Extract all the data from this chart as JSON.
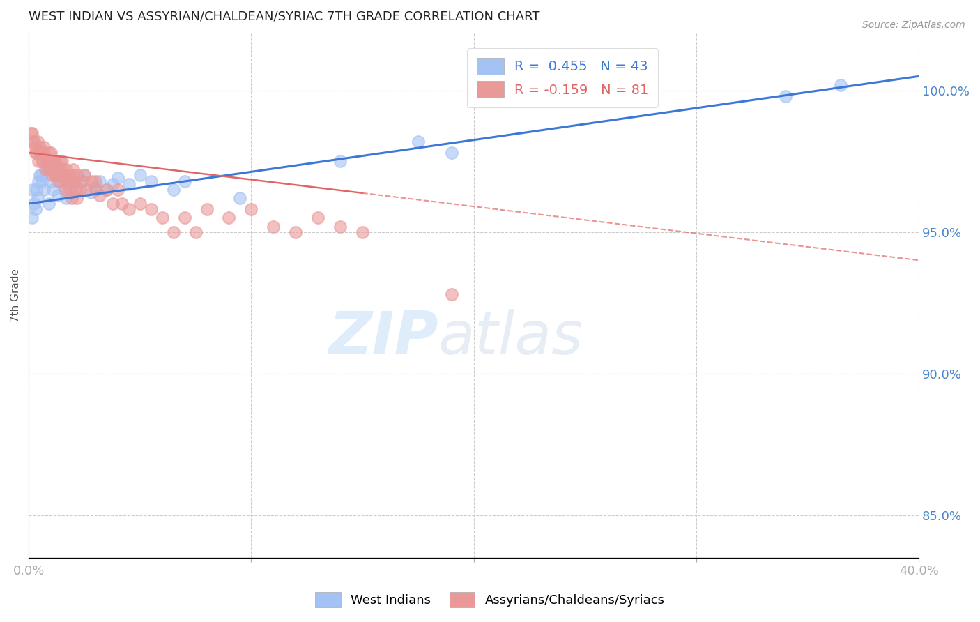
{
  "title": "WEST INDIAN VS ASSYRIAN/CHALDEAN/SYRIAC 7TH GRADE CORRELATION CHART",
  "source": "Source: ZipAtlas.com",
  "ylabel": "7th Grade",
  "ylabel_right_ticks": [
    85.0,
    90.0,
    95.0,
    100.0
  ],
  "xlim": [
    0.0,
    40.0
  ],
  "ylim": [
    83.5,
    102.0
  ],
  "blue_R": 0.455,
  "blue_N": 43,
  "pink_R": -0.159,
  "pink_N": 81,
  "legend_label_blue": "West Indians",
  "legend_label_pink": "Assyrians/Chaldeans/Syriacs",
  "watermark_zip": "ZIP",
  "watermark_atlas": "atlas",
  "blue_color": "#a4c2f4",
  "pink_color": "#ea9999",
  "blue_line_color": "#3c78d8",
  "pink_line_color": "#e06666",
  "axis_label_color": "#4a86c8",
  "title_color": "#222222",
  "grid_color": "#cccccc",
  "pink_solid_max_x": 15.0,
  "blue_scatter_x": [
    0.2,
    0.3,
    0.4,
    0.5,
    0.6,
    0.7,
    0.8,
    0.9,
    1.0,
    1.1,
    1.2,
    1.3,
    1.4,
    1.5,
    1.6,
    1.7,
    1.8,
    2.0,
    2.2,
    2.4,
    2.5,
    2.8,
    3.0,
    3.2,
    3.5,
    3.8,
    4.0,
    4.5,
    5.0,
    5.5,
    6.5,
    7.0,
    9.5,
    14.0,
    17.5,
    19.0,
    34.0,
    36.5,
    0.15,
    0.25,
    0.35,
    0.45,
    0.55
  ],
  "blue_scatter_y": [
    96.5,
    95.8,
    96.2,
    97.0,
    96.8,
    96.5,
    97.2,
    96.0,
    96.8,
    96.5,
    97.0,
    96.3,
    96.8,
    97.1,
    96.5,
    96.2,
    96.6,
    96.8,
    96.5,
    96.8,
    97.0,
    96.4,
    96.6,
    96.8,
    96.5,
    96.7,
    96.9,
    96.7,
    97.0,
    96.8,
    96.5,
    96.8,
    96.2,
    97.5,
    98.2,
    97.8,
    99.8,
    100.2,
    95.5,
    96.0,
    96.5,
    96.8,
    97.0
  ],
  "pink_scatter_x": [
    0.1,
    0.2,
    0.3,
    0.3,
    0.4,
    0.5,
    0.5,
    0.6,
    0.7,
    0.7,
    0.8,
    0.9,
    0.9,
    1.0,
    1.0,
    1.1,
    1.1,
    1.2,
    1.2,
    1.3,
    1.4,
    1.4,
    1.5,
    1.5,
    1.6,
    1.7,
    1.8,
    1.9,
    2.0,
    2.0,
    2.1,
    2.2,
    2.3,
    2.4,
    2.5,
    2.6,
    2.8,
    3.0,
    3.0,
    3.2,
    3.5,
    3.8,
    4.0,
    4.2,
    4.5,
    5.0,
    5.5,
    6.0,
    6.5,
    7.0,
    7.5,
    8.0,
    9.0,
    10.0,
    11.0,
    12.0,
    13.0,
    14.0,
    15.0,
    0.15,
    0.25,
    0.35,
    0.45,
    0.55,
    0.65,
    0.75,
    0.85,
    0.95,
    1.05,
    1.15,
    1.25,
    1.35,
    1.45,
    1.55,
    1.65,
    1.75,
    1.85,
    1.95,
    2.05,
    2.15,
    19.0
  ],
  "pink_scatter_y": [
    98.5,
    98.2,
    98.0,
    97.8,
    98.2,
    97.8,
    98.0,
    97.5,
    97.8,
    98.0,
    97.5,
    97.8,
    97.2,
    97.5,
    97.8,
    97.5,
    97.2,
    97.5,
    97.0,
    97.3,
    97.5,
    97.0,
    97.5,
    97.2,
    97.0,
    97.2,
    97.0,
    96.8,
    97.0,
    97.2,
    96.8,
    97.0,
    96.5,
    96.8,
    97.0,
    96.5,
    96.8,
    96.5,
    96.8,
    96.3,
    96.5,
    96.0,
    96.5,
    96.0,
    95.8,
    96.0,
    95.8,
    95.5,
    95.0,
    95.5,
    95.0,
    95.8,
    95.5,
    95.8,
    95.2,
    95.0,
    95.5,
    95.2,
    95.0,
    98.5,
    98.2,
    97.8,
    97.5,
    97.8,
    97.5,
    97.2,
    97.5,
    97.2,
    97.0,
    97.3,
    97.0,
    96.8,
    97.0,
    96.8,
    96.5,
    96.8,
    96.5,
    96.2,
    96.5,
    96.2,
    92.8
  ],
  "blue_line_x0": 0.0,
  "blue_line_y0": 96.0,
  "blue_line_x1": 40.0,
  "blue_line_y1": 100.5,
  "pink_line_x0": 0.0,
  "pink_line_y0": 97.8,
  "pink_line_x1": 40.0,
  "pink_line_y1": 94.0
}
